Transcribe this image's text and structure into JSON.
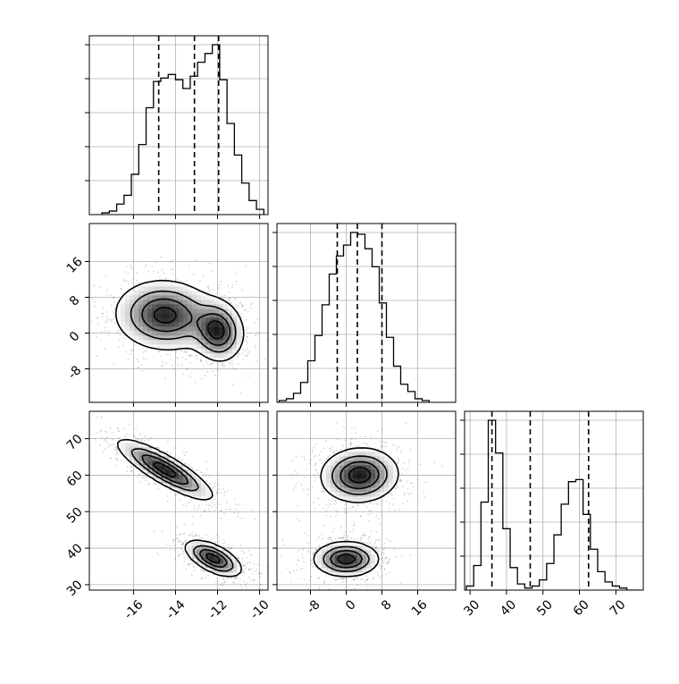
{
  "chart_data": {
    "type": "corner",
    "parameters": [
      {
        "name": "",
        "range": [
          -18.1,
          -9.6
        ],
        "ticks": [
          -16,
          -14,
          -12,
          -10
        ],
        "histogram": {
          "edges": [
            -17.5,
            -17.15,
            -16.8,
            -16.45,
            -16.1,
            -15.75,
            -15.4,
            -15.05,
            -14.7,
            -14.35,
            -14.0,
            -13.65,
            -13.3,
            -12.95,
            -12.6,
            -12.25,
            -11.9,
            -11.55,
            -11.2,
            -10.85,
            -10.5,
            -10.15,
            -9.8
          ],
          "counts": [
            0.01,
            0.02,
            0.06,
            0.11,
            0.23,
            0.4,
            0.61,
            0.76,
            0.78,
            0.8,
            0.77,
            0.72,
            0.79,
            0.87,
            0.92,
            0.97,
            0.77,
            0.52,
            0.34,
            0.18,
            0.08,
            0.03
          ]
        },
        "quantiles": [
          -14.8,
          -13.1,
          -11.95
        ]
      },
      {
        "name": "",
        "range": [
          -15.5,
          24.5
        ],
        "ticks": [
          -8,
          0,
          8,
          16
        ],
        "histogram": {
          "edges": [
            -15.0,
            -13.4,
            -11.8,
            -10.2,
            -8.6,
            -7.0,
            -5.4,
            -3.8,
            -2.2,
            -0.6,
            1.0,
            2.6,
            4.2,
            5.8,
            7.4,
            9.0,
            10.6,
            12.2,
            13.8,
            15.4,
            17.0,
            18.6
          ],
          "counts": [
            0.01,
            0.02,
            0.05,
            0.11,
            0.23,
            0.37,
            0.54,
            0.71,
            0.81,
            0.87,
            0.94,
            0.93,
            0.85,
            0.75,
            0.55,
            0.36,
            0.2,
            0.1,
            0.06,
            0.02,
            0.01
          ]
        },
        "quantiles": [
          -2.0,
          2.5,
          8.0
        ]
      },
      {
        "name": "",
        "range": [
          28.5,
          77.5
        ],
        "ticks": [
          30,
          40,
          50,
          60,
          70
        ],
        "histogram": {
          "edges": [
            29.0,
            31.0,
            33.0,
            35.0,
            37.0,
            39.0,
            41.0,
            43.0,
            45.0,
            47.0,
            49.0,
            51.0,
            53.0,
            55.0,
            57.0,
            59.0,
            61.0,
            63.0,
            65.0,
            67.0,
            69.0,
            71.0,
            73.0,
            75.0,
            77.0
          ],
          "counts": [
            0.02,
            0.12,
            0.43,
            0.83,
            0.67,
            0.3,
            0.11,
            0.03,
            0.01,
            0.02,
            0.05,
            0.13,
            0.27,
            0.42,
            0.53,
            0.54,
            0.37,
            0.2,
            0.09,
            0.04,
            0.02,
            0.01,
            0.0,
            0.0
          ]
        },
        "quantiles": [
          36.0,
          46.5,
          62.5
        ]
      }
    ],
    "pairs": [
      {
        "x": 0,
        "y": 1,
        "components": [
          {
            "weight": 0.5,
            "mean": [
              -14.5,
              4.0
            ],
            "sd": [
              1.15,
              3.8
            ],
            "rho": -0.05
          },
          {
            "weight": 0.5,
            "mean": [
              -12.0,
              0.5
            ],
            "sd": [
              0.6,
              3.3
            ],
            "rho": -0.1
          }
        ]
      },
      {
        "x": 0,
        "y": 2,
        "components": [
          {
            "weight": 0.5,
            "mean": [
              -14.5,
              61.5
            ],
            "sd": [
              1.1,
              4.0
            ],
            "rho": -0.85
          },
          {
            "weight": 0.5,
            "mean": [
              -12.2,
              37.2
            ],
            "sd": [
              0.65,
              2.4
            ],
            "rho": -0.6
          }
        ]
      },
      {
        "x": 1,
        "y": 2,
        "components": [
          {
            "weight": 0.5,
            "mean": [
              3.0,
              60.0
            ],
            "sd": [
              4.2,
              3.6
            ],
            "rho": 0.05
          },
          {
            "weight": 0.5,
            "mean": [
              0.0,
              37.0
            ],
            "sd": [
              3.5,
              2.3
            ],
            "rho": 0.0
          }
        ]
      }
    ],
    "contour_levels": [
      0.12,
      0.35,
      0.6,
      0.85
    ],
    "grid": true,
    "legend": "none"
  }
}
